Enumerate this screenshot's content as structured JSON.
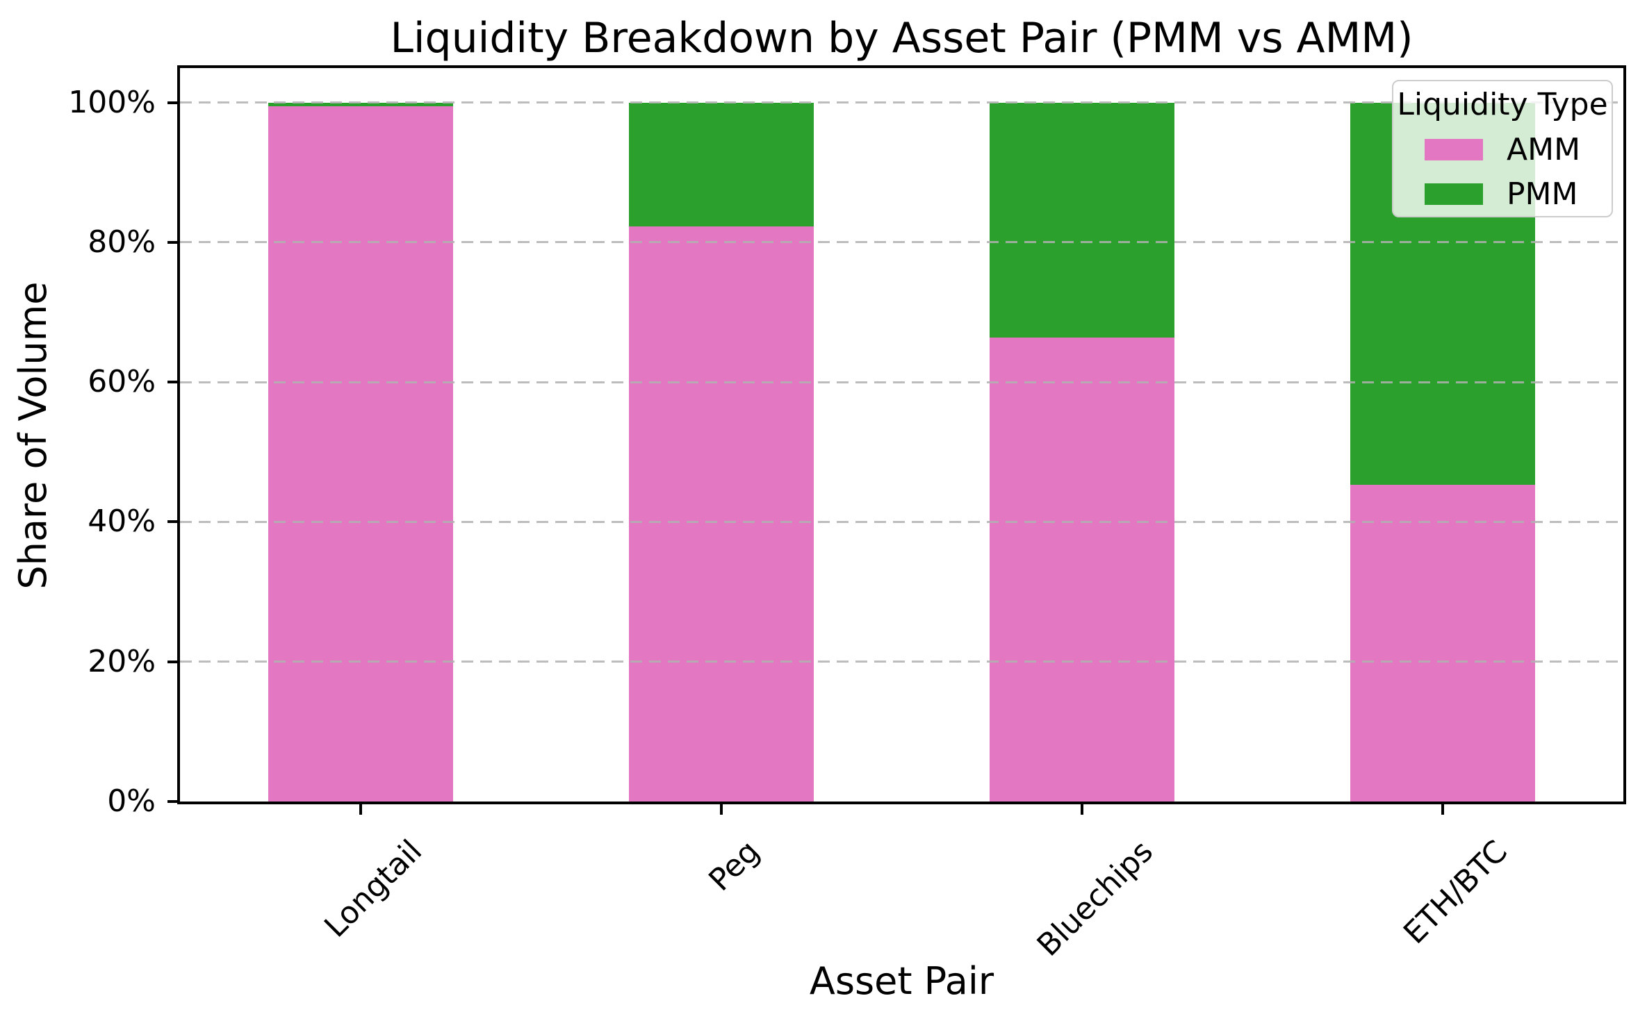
{
  "figure": {
    "title": "Liquidity Breakdown by Asset Pair (PMM vs AMM)"
  },
  "axes": {
    "x_label": "Asset Pair",
    "y_label": "Share of Volume"
  },
  "legend": {
    "title": "Liquidity Type",
    "entries": [
      {
        "label": "AMM",
        "color": "#e377c2"
      },
      {
        "label": "PMM",
        "color": "#2ca02c"
      }
    ],
    "position": "upper right"
  },
  "chart_data": {
    "type": "bar",
    "stacked": true,
    "categories": [
      "Longtail",
      "Peg",
      "Bluechips",
      "ETH/BTC"
    ],
    "series": [
      {
        "name": "AMM",
        "color": "#e377c2",
        "values": [
          99.5,
          82.3,
          66.4,
          45.3
        ]
      },
      {
        "name": "PMM",
        "color": "#2ca02c",
        "values": [
          0.5,
          17.7,
          33.6,
          54.7
        ]
      }
    ],
    "values_unit": "percent of volume",
    "title": "Liquidity Breakdown by Asset Pair (PMM vs AMM)",
    "xlabel": "Asset Pair",
    "ylabel": "Share of Volume",
    "ylim": [
      0,
      105
    ],
    "y_ticks": {
      "values": [
        0,
        20,
        40,
        60,
        80,
        100
      ],
      "labels": [
        "0%",
        "20%",
        "40%",
        "60%",
        "80%",
        "100%"
      ]
    },
    "x_tick_rotation": 45,
    "grid": {
      "axis": "y",
      "style": "dashed",
      "color": "#b0b0b0"
    },
    "legend_position": "upper right"
  },
  "colors": {
    "background": "#ffffff",
    "spine": "#000000",
    "grid": "#b0b0b0",
    "legend_border": "#cccccc",
    "amm": "#e377c2",
    "pmm": "#2ca02c"
  }
}
